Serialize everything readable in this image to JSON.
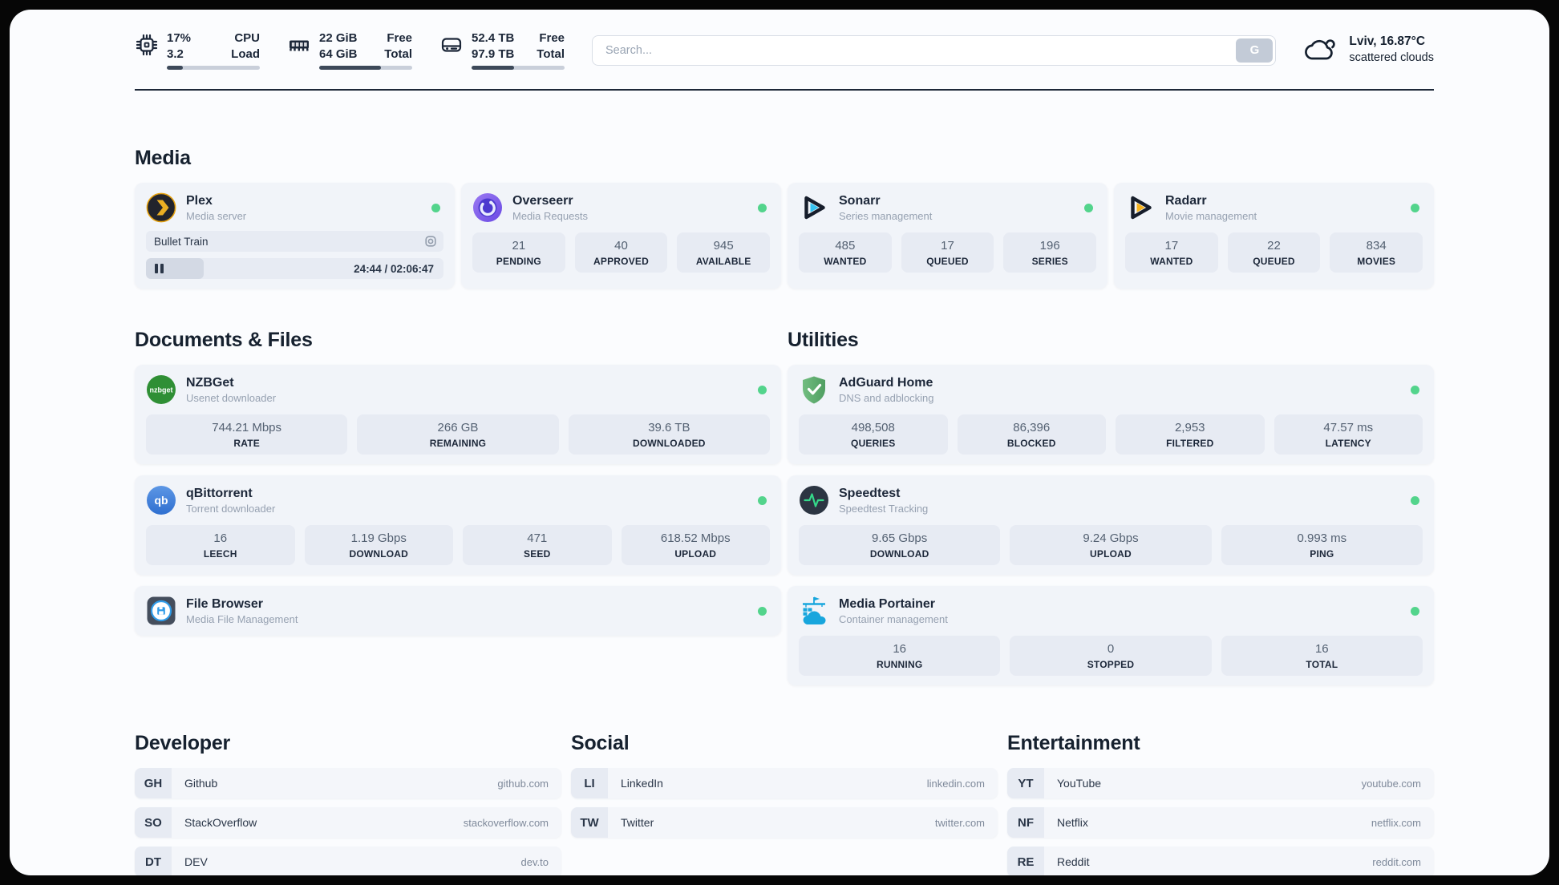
{
  "header": {
    "stats": [
      {
        "values": [
          "17%",
          "3.2"
        ],
        "labels": [
          "CPU",
          "Load"
        ],
        "progress_pct": 17
      },
      {
        "values": [
          "22 GiB",
          "64 GiB"
        ],
        "labels": [
          "Free",
          "Total"
        ],
        "progress_pct": 66
      },
      {
        "values": [
          "52.4 TB",
          "97.9 TB"
        ],
        "labels": [
          "Free",
          "Total"
        ],
        "progress_pct": 46
      }
    ],
    "search": {
      "placeholder": "Search...",
      "button_label": "G"
    },
    "weather": {
      "location": "Lviv, 16.87°C",
      "condition": "scattered clouds"
    }
  },
  "sections": {
    "media": {
      "heading": "Media",
      "plex": {
        "title": "Plex",
        "subtitle": "Media server",
        "now_playing": "Bullet Train",
        "time": "24:44 / 02:06:47",
        "progress_pct": 19.5
      },
      "overseerr": {
        "title": "Overseerr",
        "subtitle": "Media Requests",
        "stats": [
          {
            "value": "21",
            "label": "PENDING"
          },
          {
            "value": "40",
            "label": "APPROVED"
          },
          {
            "value": "945",
            "label": "AVAILABLE"
          }
        ]
      },
      "sonarr": {
        "title": "Sonarr",
        "subtitle": "Series management",
        "stats": [
          {
            "value": "485",
            "label": "WANTED"
          },
          {
            "value": "17",
            "label": "QUEUED"
          },
          {
            "value": "196",
            "label": "SERIES"
          }
        ]
      },
      "radarr": {
        "title": "Radarr",
        "subtitle": "Movie management",
        "stats": [
          {
            "value": "17",
            "label": "WANTED"
          },
          {
            "value": "22",
            "label": "QUEUED"
          },
          {
            "value": "834",
            "label": "MOVIES"
          }
        ]
      }
    },
    "documents": {
      "heading": "Documents & Files",
      "nzbget": {
        "title": "NZBGet",
        "subtitle": "Usenet downloader",
        "icon_label": "nzbget",
        "stats": [
          {
            "value": "744.21 Mbps",
            "label": "RATE"
          },
          {
            "value": "266 GB",
            "label": "REMAINING"
          },
          {
            "value": "39.6 TB",
            "label": "DOWNLOADED"
          }
        ]
      },
      "qbittorrent": {
        "title": "qBittorrent",
        "subtitle": "Torrent downloader",
        "icon_label": "qb",
        "stats": [
          {
            "value": "16",
            "label": "LEECH"
          },
          {
            "value": "1.19 Gbps",
            "label": "DOWNLOAD"
          },
          {
            "value": "471",
            "label": "SEED"
          },
          {
            "value": "618.52 Mbps",
            "label": "UPLOAD"
          }
        ]
      },
      "filebrowser": {
        "title": "File Browser",
        "subtitle": "Media File Management"
      }
    },
    "utilities": {
      "heading": "Utilities",
      "adguard": {
        "title": "AdGuard Home",
        "subtitle": "DNS and adblocking",
        "stats": [
          {
            "value": "498,508",
            "label": "QUERIES"
          },
          {
            "value": "86,396",
            "label": "BLOCKED"
          },
          {
            "value": "2,953",
            "label": "FILTERED"
          },
          {
            "value": "47.57 ms",
            "label": "LATENCY"
          }
        ]
      },
      "speedtest": {
        "title": "Speedtest",
        "subtitle": "Speedtest Tracking",
        "stats": [
          {
            "value": "9.65 Gbps",
            "label": "DOWNLOAD"
          },
          {
            "value": "9.24 Gbps",
            "label": "UPLOAD"
          },
          {
            "value": "0.993 ms",
            "label": "PING"
          }
        ]
      },
      "portainer": {
        "title": "Media Portainer",
        "subtitle": "Container management",
        "stats": [
          {
            "value": "16",
            "label": "RUNNING"
          },
          {
            "value": "0",
            "label": "STOPPED"
          },
          {
            "value": "16",
            "label": "TOTAL"
          }
        ]
      }
    },
    "developer": {
      "heading": "Developer",
      "links": [
        {
          "badge": "GH",
          "name": "Github",
          "url": "github.com"
        },
        {
          "badge": "SO",
          "name": "StackOverflow",
          "url": "stackoverflow.com"
        },
        {
          "badge": "DT",
          "name": "DEV",
          "url": "dev.to"
        }
      ]
    },
    "social": {
      "heading": "Social",
      "links": [
        {
          "badge": "LI",
          "name": "LinkedIn",
          "url": "linkedin.com"
        },
        {
          "badge": "TW",
          "name": "Twitter",
          "url": "twitter.com"
        }
      ]
    },
    "entertainment": {
      "heading": "Entertainment",
      "links": [
        {
          "badge": "YT",
          "name": "YouTube",
          "url": "youtube.com"
        },
        {
          "badge": "NF",
          "name": "Netflix",
          "url": "netflix.com"
        },
        {
          "badge": "RE",
          "name": "Reddit",
          "url": "reddit.com"
        }
      ]
    }
  },
  "colors": {
    "status_online": "#53d48c",
    "plex_accent": "#e5a00d",
    "sonarr_accent": "#36c3f1",
    "radarr_accent": "#f6b31e",
    "adguard_accent": "#5fb36f",
    "portainer_accent": "#18a6dd",
    "progress_fill": "#3d4959",
    "heading_text": "#16212f"
  }
}
